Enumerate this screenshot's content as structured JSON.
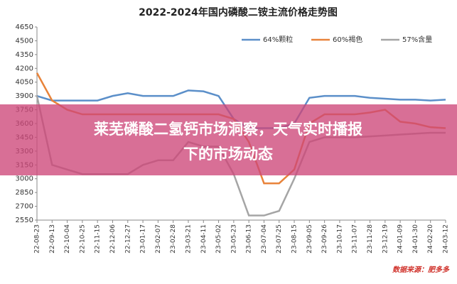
{
  "chart_data": {
    "type": "line",
    "title": "2022-2024年国内磷酸二铵主流价格走势图",
    "source": "数据来源：肥多多",
    "categories": [
      "22-08-23",
      "22-09-13",
      "22-10-04",
      "22-10-25",
      "22-11-15",
      "22-12-06",
      "22-12-27",
      "23-01-17",
      "23-02-07",
      "23-02-28",
      "23-03-21",
      "23-04-11",
      "23-05-02",
      "23-05-23",
      "23-06-13",
      "23-07-04",
      "23-07-25",
      "23-08-15",
      "23-09-05",
      "23-09-26",
      "23-10-17",
      "23-11-07",
      "23-11-28",
      "23-12-19",
      "24-01-09",
      "24-01-30",
      "24-02-20",
      "24-03-12"
    ],
    "series": [
      {
        "name": "64%颗粒",
        "color": "#5b8fc9",
        "values": [
          3900,
          3850,
          3850,
          3850,
          3850,
          3900,
          3930,
          3900,
          3900,
          3900,
          3960,
          3950,
          3900,
          3650,
          3550,
          3550,
          3550,
          3600,
          3880,
          3900,
          3900,
          3900,
          3880,
          3870,
          3860,
          3860,
          3850,
          3860
        ]
      },
      {
        "name": "60%褐色",
        "color": "#e8833a",
        "values": [
          4150,
          3850,
          3750,
          3700,
          3700,
          3700,
          3700,
          3700,
          3700,
          3700,
          3700,
          3700,
          3700,
          3650,
          3400,
          2950,
          2950,
          3100,
          3600,
          3700,
          3700,
          3700,
          3720,
          3750,
          3620,
          3600,
          3560,
          3550
        ]
      },
      {
        "name": "57%含量",
        "color": "#a5a5a5",
        "values": [
          3900,
          3150,
          3100,
          3050,
          3050,
          3050,
          3050,
          3150,
          3200,
          3200,
          3400,
          3350,
          3350,
          3050,
          2600,
          2600,
          2650,
          3000,
          3400,
          3450,
          3450,
          3450,
          3460,
          3470,
          3480,
          3490,
          3500,
          3500
        ]
      }
    ],
    "ylim": [
      2550,
      4650
    ],
    "yticks": [
      2550,
      2700,
      2850,
      3000,
      3150,
      3300,
      3450,
      3600,
      3750,
      3900,
      4050,
      4200,
      4350,
      4500,
      4650
    ],
    "grid": false
  },
  "banner": {
    "line1": "莱芜磷酸二氢钙市场洞察，天气实时播报",
    "line2": "下的市场动态"
  }
}
